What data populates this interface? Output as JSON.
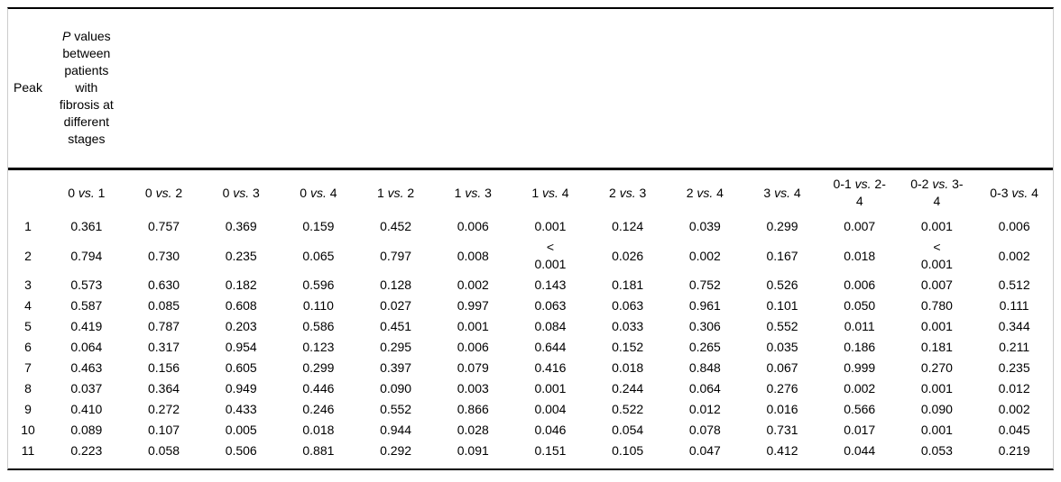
{
  "table": {
    "peak_header": "Peak",
    "main_header": "P values between patients with fibrosis at different stages",
    "columns": [
      "0 vs. 1",
      "0 vs. 2",
      "0 vs. 3",
      "0 vs. 4",
      "1 vs. 2",
      "1 vs. 3",
      "1 vs. 4",
      "2 vs. 3",
      "2 vs. 4",
      "3 vs. 4",
      "0-1 vs. 2-4",
      "0-2 vs. 3-4",
      "0-3 vs. 4"
    ],
    "rows": [
      {
        "peak": "1",
        "values": [
          "0.361",
          "0.757",
          "0.369",
          "0.159",
          "0.452",
          "0.006",
          "0.001",
          "0.124",
          "0.039",
          "0.299",
          "0.007",
          "0.001",
          "0.006"
        ]
      },
      {
        "peak": "2",
        "values": [
          "0.794",
          "0.730",
          "0.235",
          "0.065",
          "0.797",
          "0.008",
          "< 0.001",
          "0.026",
          "0.002",
          "0.167",
          "0.018",
          "< 0.001",
          "0.002"
        ]
      },
      {
        "peak": "3",
        "values": [
          "0.573",
          "0.630",
          "0.182",
          "0.596",
          "0.128",
          "0.002",
          "0.143",
          "0.181",
          "0.752",
          "0.526",
          "0.006",
          "0.007",
          "0.512"
        ]
      },
      {
        "peak": "4",
        "values": [
          "0.587",
          "0.085",
          "0.608",
          "0.110",
          "0.027",
          "0.997",
          "0.063",
          "0.063",
          "0.961",
          "0.101",
          "0.050",
          "0.780",
          "0.111"
        ]
      },
      {
        "peak": "5",
        "values": [
          "0.419",
          "0.787",
          "0.203",
          "0.586",
          "0.451",
          "0.001",
          "0.084",
          "0.033",
          "0.306",
          "0.552",
          "0.011",
          "0.001",
          "0.344"
        ]
      },
      {
        "peak": "6",
        "values": [
          "0.064",
          "0.317",
          "0.954",
          "0.123",
          "0.295",
          "0.006",
          "0.644",
          "0.152",
          "0.265",
          "0.035",
          "0.186",
          "0.181",
          "0.211"
        ]
      },
      {
        "peak": "7",
        "values": [
          "0.463",
          "0.156",
          "0.605",
          "0.299",
          "0.397",
          "0.079",
          "0.416",
          "0.018",
          "0.848",
          "0.067",
          "0.999",
          "0.270",
          "0.235"
        ]
      },
      {
        "peak": "8",
        "values": [
          "0.037",
          "0.364",
          "0.949",
          "0.446",
          "0.090",
          "0.003",
          "0.001",
          "0.244",
          "0.064",
          "0.276",
          "0.002",
          "0.001",
          "0.012"
        ]
      },
      {
        "peak": "9",
        "values": [
          "0.410",
          "0.272",
          "0.433",
          "0.246",
          "0.552",
          "0.866",
          "0.004",
          "0.522",
          "0.012",
          "0.016",
          "0.566",
          "0.090",
          "0.002"
        ]
      },
      {
        "peak": "10",
        "values": [
          "0.089",
          "0.107",
          "0.005",
          "0.018",
          "0.944",
          "0.028",
          "0.046",
          "0.054",
          "0.078",
          "0.731",
          "0.017",
          "0.001",
          "0.045"
        ]
      },
      {
        "peak": "11",
        "values": [
          "0.223",
          "0.058",
          "0.506",
          "0.881",
          "0.292",
          "0.091",
          "0.151",
          "0.105",
          "0.047",
          "0.412",
          "0.044",
          "0.053",
          "0.219"
        ]
      }
    ]
  }
}
